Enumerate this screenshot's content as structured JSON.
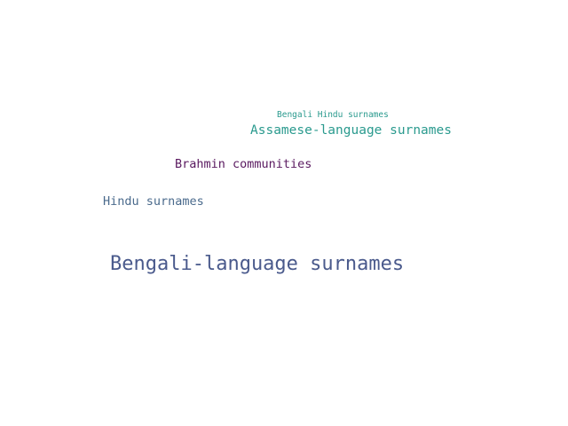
{
  "word_cloud": {
    "words": [
      {
        "text": "Bengali Hindu surnames",
        "color": "#2a9a8e"
      },
      {
        "text": "Assamese-language surnames",
        "color": "#2a9a8e"
      },
      {
        "text": "Brahmin communities",
        "color": "#5a1a60"
      },
      {
        "text": "Hindu surnames",
        "color": "#4a6a8c"
      },
      {
        "text": "Bengali-language surnames",
        "color": "#4a5a8c"
      }
    ]
  }
}
